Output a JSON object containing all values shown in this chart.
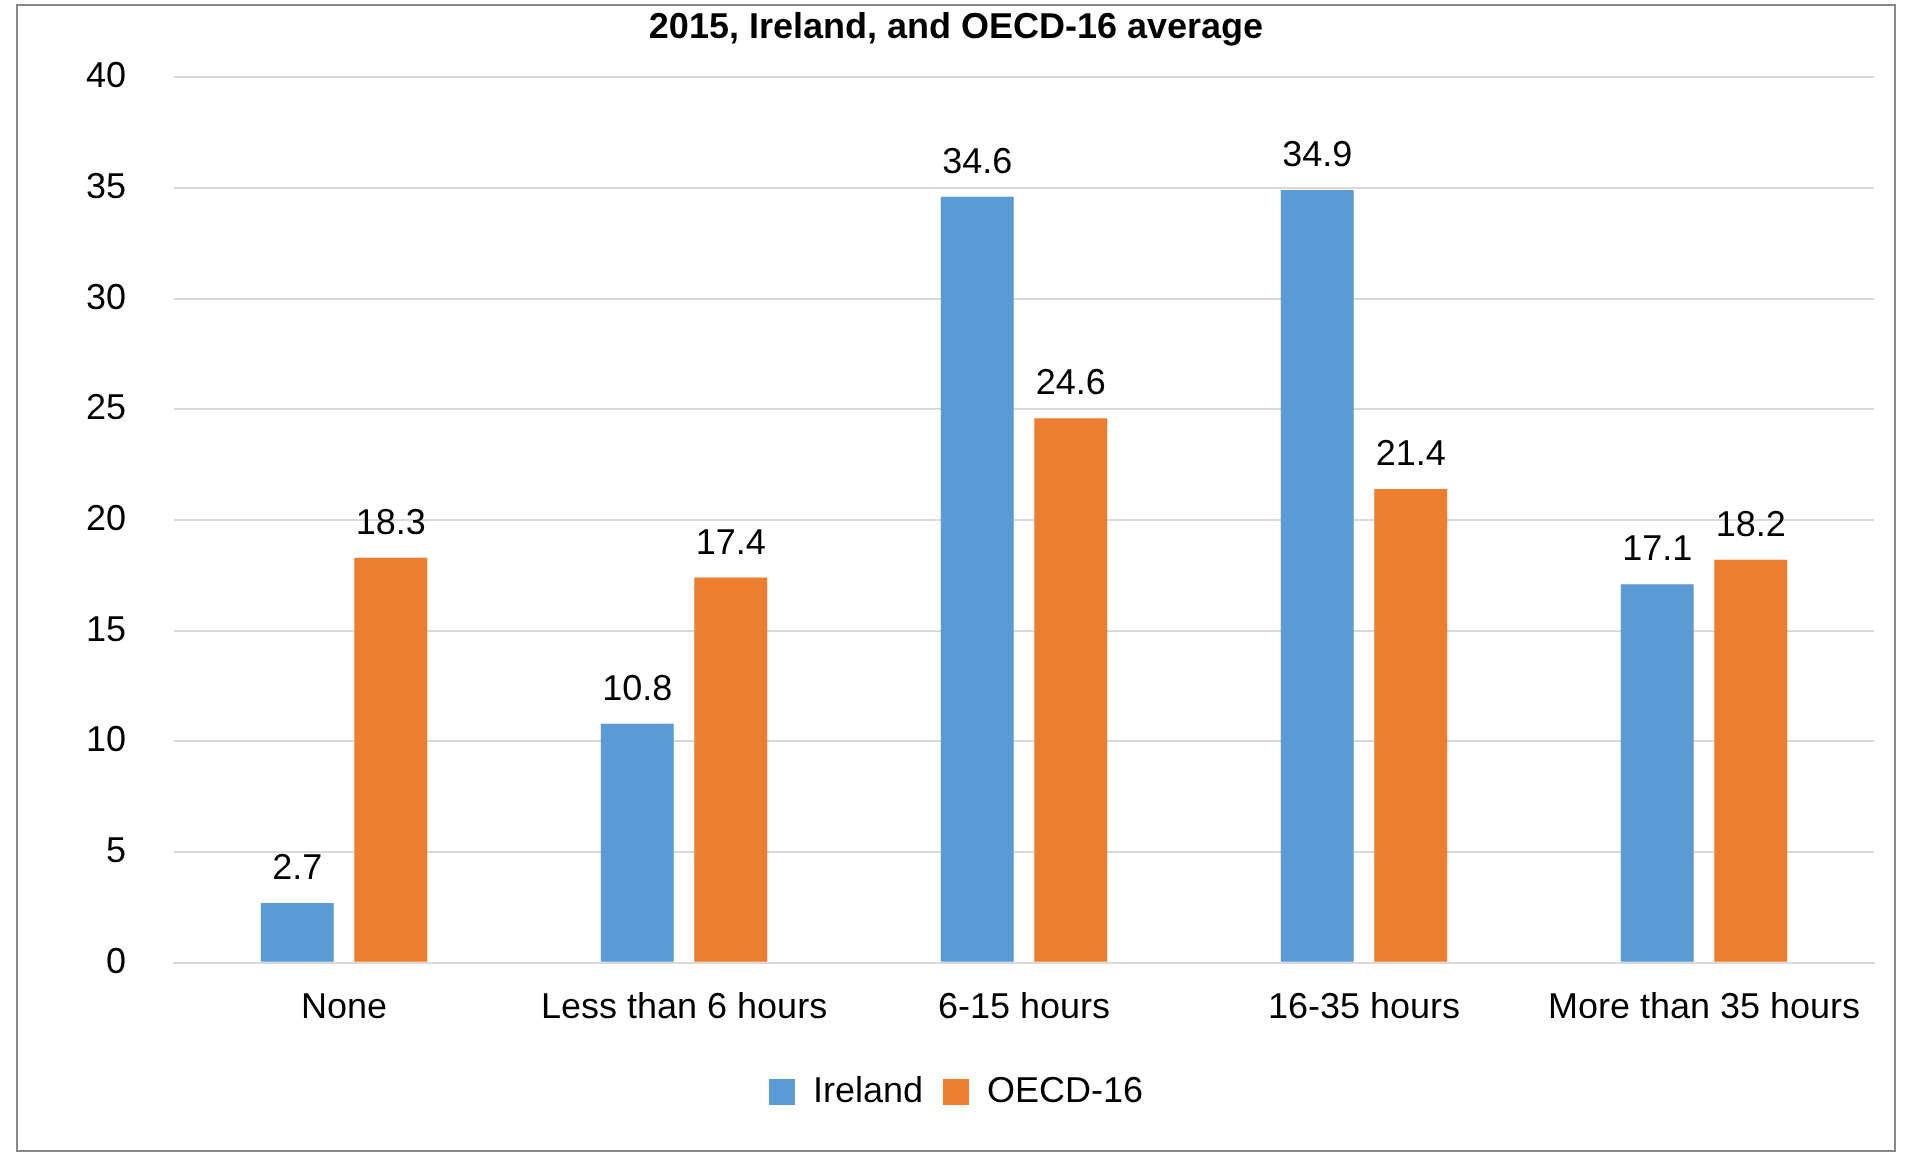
{
  "chart_data": {
    "type": "bar",
    "title": "2015, Ireland, and OECD-16 average",
    "categories": [
      "None",
      "Less than 6 hours",
      "6-15 hours",
      "16-35 hours",
      "More than 35 hours"
    ],
    "series": [
      {
        "name": "Ireland",
        "color": "#5b9bd5",
        "values": [
          2.7,
          10.8,
          34.6,
          34.9,
          17.1
        ]
      },
      {
        "name": "OECD-16",
        "color": "#ed7d31",
        "values": [
          18.3,
          17.4,
          24.6,
          21.4,
          18.2
        ]
      }
    ],
    "ylim": [
      0,
      40
    ],
    "yticks": [
      0,
      5,
      10,
      15,
      20,
      25,
      30,
      35,
      40
    ],
    "grid": "y",
    "legend": "bottom",
    "data_labels": true
  }
}
